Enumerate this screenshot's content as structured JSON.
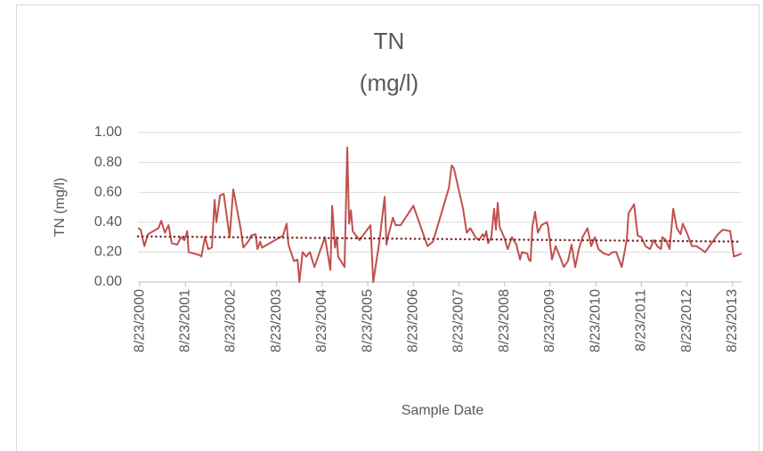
{
  "chart_data": {
    "type": "line",
    "title": "TN",
    "subtitle": "(mg/l)",
    "x_label": "Sample Date",
    "y_label": "TN (mg/l)",
    "x": [
      2000.6,
      2000.66,
      2000.74,
      2000.82,
      2001.05,
      2001.11,
      2001.19,
      2001.27,
      2001.34,
      2001.46,
      2001.54,
      2001.62,
      2001.68,
      2001.71,
      2001.95,
      2001.99,
      2002.07,
      2002.14,
      2002.22,
      2002.28,
      2002.32,
      2002.4,
      2002.48,
      2002.61,
      2002.69,
      2002.85,
      2002.91,
      2003.04,
      2003.08,
      2003.18,
      2003.22,
      2003.28,
      2003.32,
      2003.78,
      2003.86,
      2003.9,
      2004.02,
      2004.1,
      2004.14,
      2004.21,
      2004.29,
      2004.37,
      2004.47,
      2004.7,
      2004.82,
      2004.86,
      2004.92,
      2004.96,
      2004.99,
      2005.13,
      2005.19,
      2005.23,
      2005.27,
      2005.31,
      2005.46,
      2005.7,
      2005.76,
      2005.89,
      2006.01,
      2006.05,
      2006.09,
      2006.19,
      2006.25,
      2006.36,
      2006.64,
      2006.95,
      2007.07,
      2007.42,
      2007.48,
      2007.53,
      2007.73,
      2007.81,
      2007.89,
      2008.0,
      2008.08,
      2008.16,
      2008.2,
      2008.24,
      2008.28,
      2008.35,
      2008.41,
      2008.45,
      2008.49,
      2008.53,
      2008.63,
      2008.71,
      2008.8,
      2008.9,
      2008.98,
      2009.02,
      2009.14,
      2009.17,
      2009.21,
      2009.25,
      2009.31,
      2009.37,
      2009.45,
      2009.57,
      2009.6,
      2009.68,
      2009.76,
      2009.84,
      2009.94,
      2010.03,
      2010.11,
      2010.19,
      2010.27,
      2010.35,
      2010.46,
      2010.54,
      2010.62,
      2010.7,
      2010.82,
      2010.93,
      2011.01,
      2011.09,
      2011.21,
      2011.32,
      2011.36,
      2011.48,
      2011.56,
      2011.64,
      2011.73,
      2011.83,
      2011.91,
      2011.99,
      2012.07,
      2012.1,
      2012.18,
      2012.26,
      2012.34,
      2012.42,
      2012.5,
      2012.55,
      2012.65,
      2012.75,
      2012.85,
      2013.04,
      2013.32,
      2013.43,
      2013.59,
      2013.67,
      2013.84
    ],
    "series": [
      {
        "color": "#c0504d",
        "values": [
          0.36,
          0.35,
          0.24,
          0.32,
          0.36,
          0.41,
          0.33,
          0.38,
          0.26,
          0.25,
          0.3,
          0.28,
          0.34,
          0.2,
          0.18,
          0.17,
          0.3,
          0.22,
          0.23,
          0.55,
          0.4,
          0.58,
          0.59,
          0.3,
          0.62,
          0.36,
          0.23,
          0.28,
          0.31,
          0.32,
          0.22,
          0.27,
          0.23,
          0.31,
          0.39,
          0.25,
          0.14,
          0.15,
          0.0,
          0.2,
          0.17,
          0.2,
          0.1,
          0.3,
          0.08,
          0.51,
          0.23,
          0.3,
          0.17,
          0.1,
          0.9,
          0.39,
          0.48,
          0.34,
          0.28,
          0.38,
          0.0,
          0.26,
          0.57,
          0.25,
          0.31,
          0.43,
          0.38,
          0.38,
          0.51,
          0.24,
          0.27,
          0.63,
          0.78,
          0.76,
          0.49,
          0.33,
          0.36,
          0.3,
          0.28,
          0.32,
          0.3,
          0.34,
          0.26,
          0.3,
          0.49,
          0.35,
          0.53,
          0.37,
          0.3,
          0.22,
          0.3,
          0.25,
          0.15,
          0.2,
          0.19,
          0.15,
          0.14,
          0.37,
          0.47,
          0.33,
          0.38,
          0.4,
          0.36,
          0.15,
          0.24,
          0.18,
          0.1,
          0.14,
          0.25,
          0.1,
          0.22,
          0.3,
          0.36,
          0.24,
          0.3,
          0.22,
          0.19,
          0.18,
          0.2,
          0.2,
          0.1,
          0.28,
          0.46,
          0.52,
          0.31,
          0.3,
          0.24,
          0.22,
          0.28,
          0.24,
          0.22,
          0.3,
          0.28,
          0.22,
          0.49,
          0.36,
          0.32,
          0.39,
          0.32,
          0.24,
          0.24,
          0.2,
          0.32,
          0.35,
          0.34,
          0.17,
          0.19
        ]
      }
    ],
    "trendline": {
      "color": "#7b2222",
      "x": [
        2000.6,
        2013.84
      ],
      "values": [
        0.305,
        0.27
      ]
    },
    "xlim": [
      2000.6,
      2013.84
    ],
    "xticks": [
      {
        "value": 2000.64,
        "label": "8/23/2000"
      },
      {
        "value": 2001.64,
        "label": "8/23/2001"
      },
      {
        "value": 2002.64,
        "label": "8/23/2002"
      },
      {
        "value": 2003.64,
        "label": "8/23/2003"
      },
      {
        "value": 2004.64,
        "label": "8/23/2004"
      },
      {
        "value": 2005.64,
        "label": "8/23/2005"
      },
      {
        "value": 2006.64,
        "label": "8/23/2006"
      },
      {
        "value": 2007.64,
        "label": "8/23/2007"
      },
      {
        "value": 2008.64,
        "label": "8/23/2008"
      },
      {
        "value": 2009.64,
        "label": "8/23/2009"
      },
      {
        "value": 2010.64,
        "label": "8/23/2010"
      },
      {
        "value": 2011.64,
        "label": "8/23/2011"
      },
      {
        "value": 2012.64,
        "label": "8/23/2012"
      },
      {
        "value": 2013.64,
        "label": "8/23/2013"
      }
    ],
    "ylim": [
      0,
      1
    ],
    "yticks": [
      {
        "value": 0,
        "label": "0.00"
      },
      {
        "value": 0.2,
        "label": "0.20"
      },
      {
        "value": 0.4,
        "label": "0.40"
      },
      {
        "value": 0.6,
        "label": "0.60"
      },
      {
        "value": 0.8,
        "label": "0.80"
      },
      {
        "value": 1,
        "label": "1.00"
      }
    ],
    "grid": true
  }
}
